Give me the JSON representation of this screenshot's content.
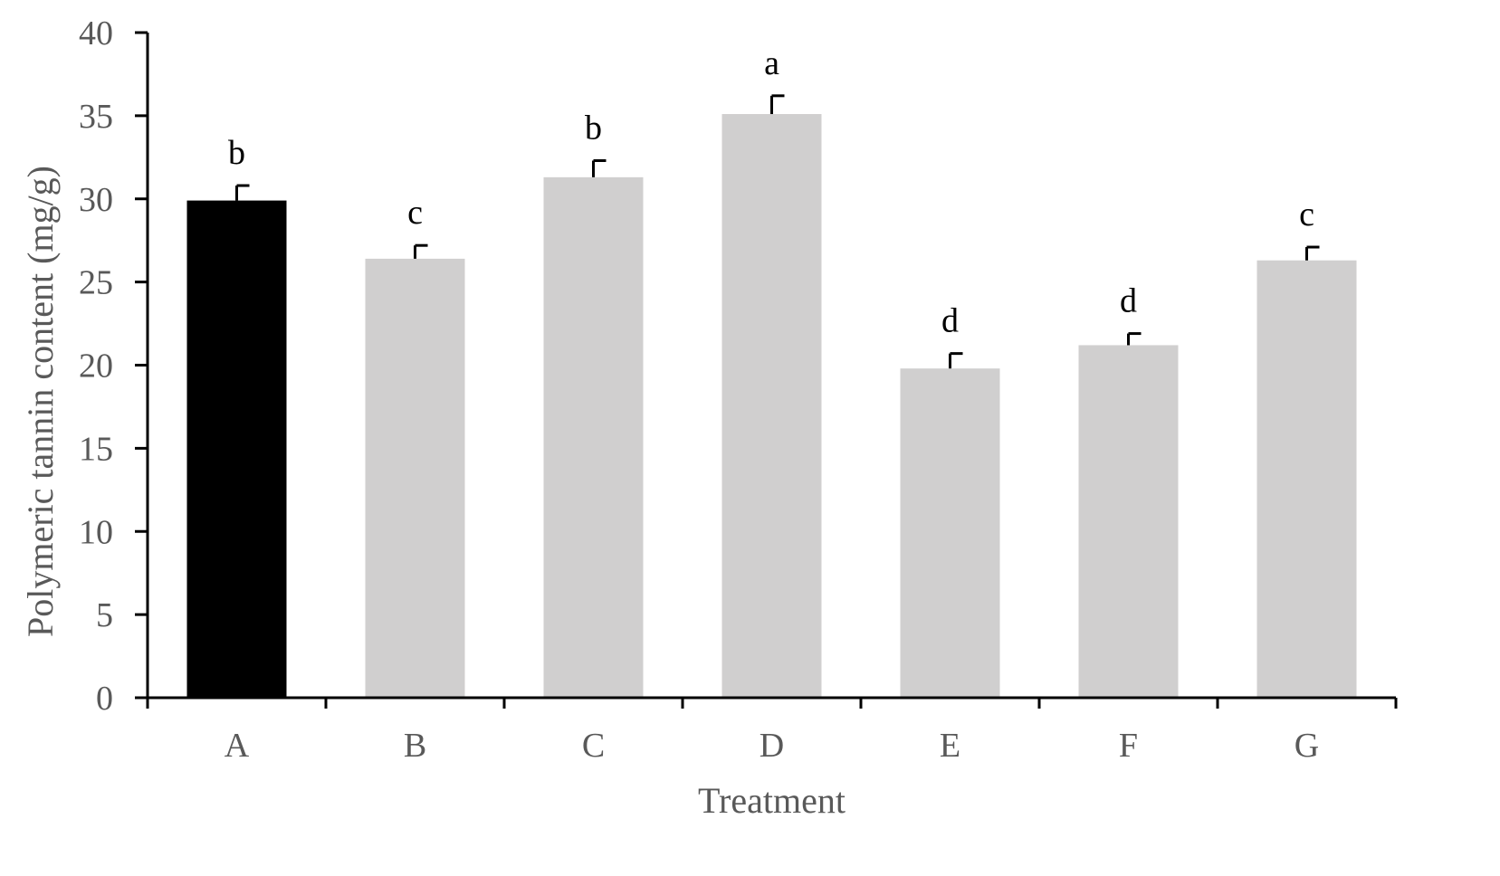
{
  "chart_data": {
    "type": "bar",
    "categories": [
      "A",
      "B",
      "C",
      "D",
      "E",
      "F",
      "G"
    ],
    "values": [
      29.9,
      26.4,
      31.3,
      35.1,
      19.8,
      21.2,
      26.3
    ],
    "errors": [
      0.9,
      0.8,
      1.0,
      1.1,
      0.9,
      0.7,
      0.8
    ],
    "significance_letters": [
      "b",
      "c",
      "b",
      "a",
      "d",
      "d",
      "c"
    ],
    "xlabel": "Treatment",
    "ylabel": "Polymeric tannin content (mg/g)",
    "ylim": [
      0,
      40
    ],
    "yticks": [
      0,
      5,
      10,
      15,
      20,
      25,
      30,
      35,
      40
    ],
    "grid": false,
    "colors": {
      "control_bar": "#000000",
      "treatment_bar": "#d0cfcf",
      "axis": "#000000"
    }
  }
}
